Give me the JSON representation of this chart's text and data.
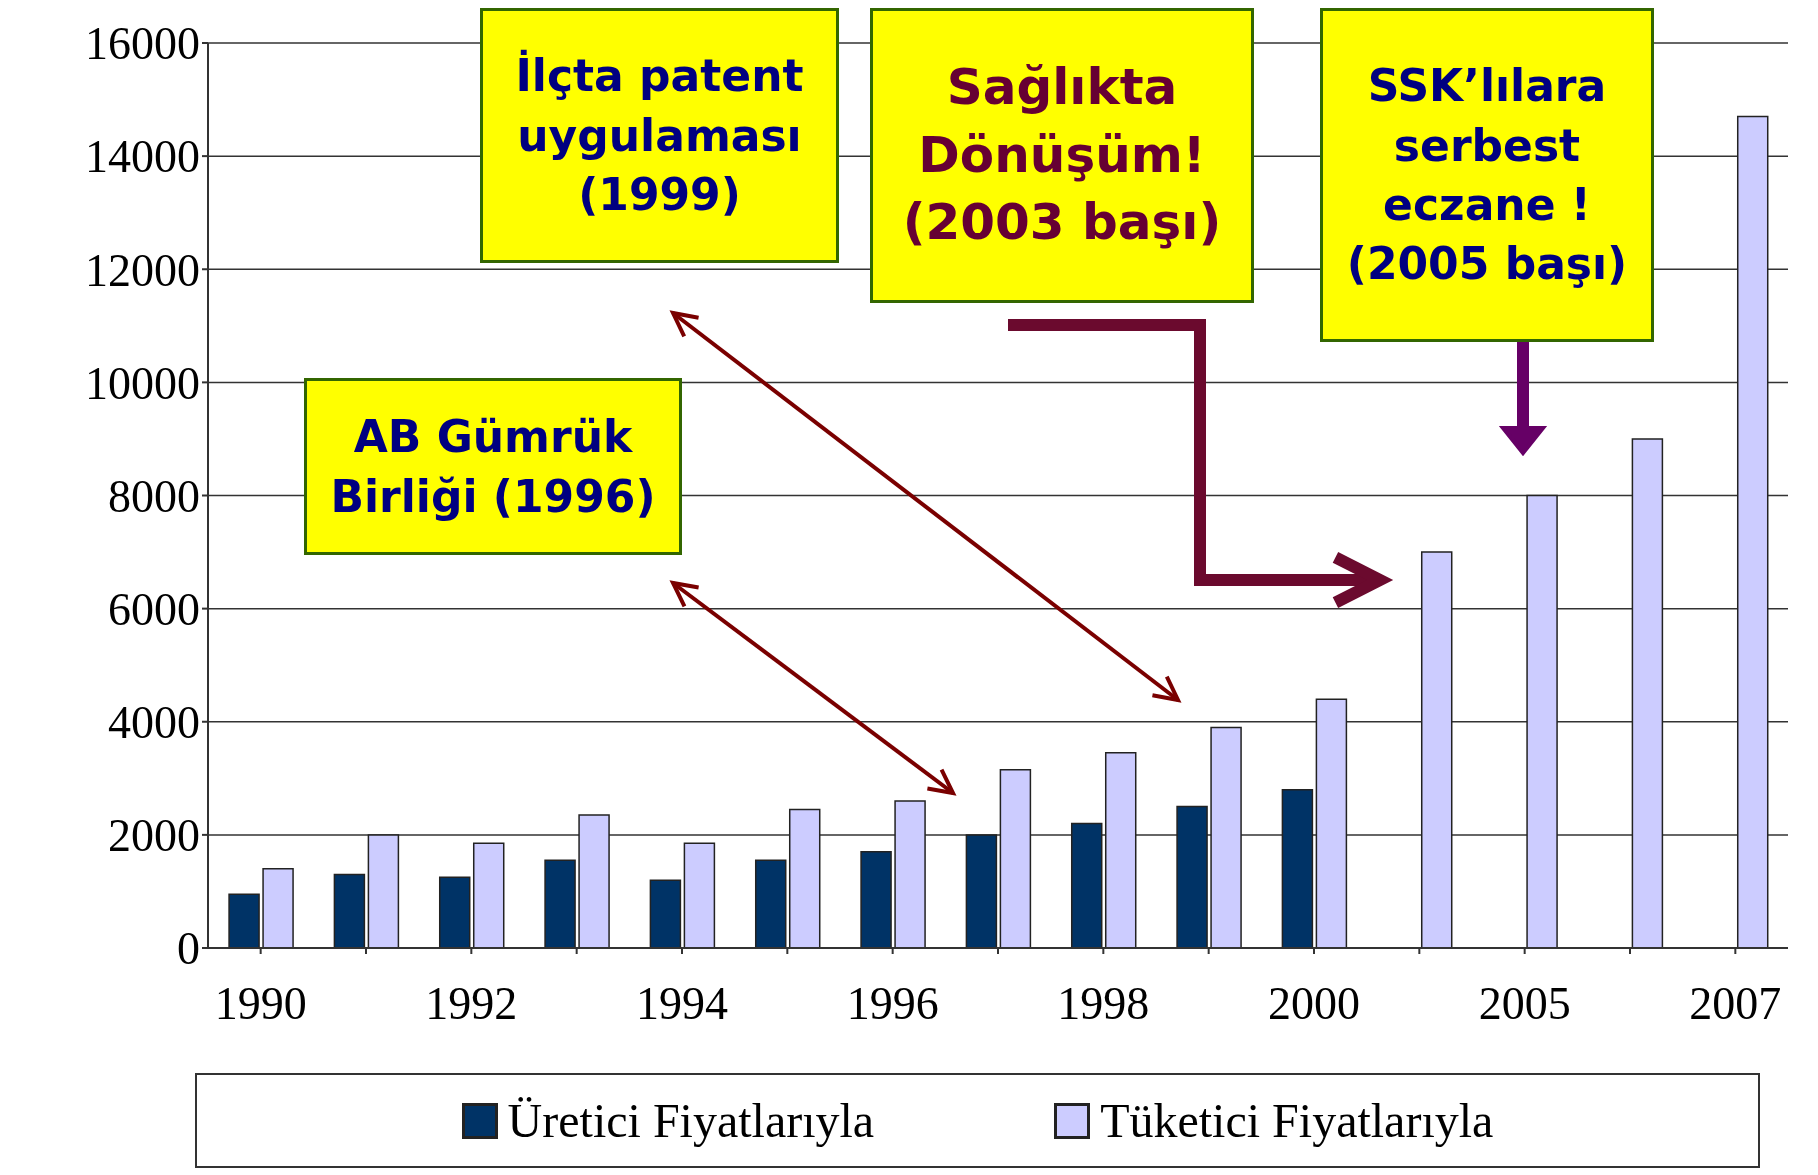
{
  "chart_data": {
    "type": "bar",
    "categories": [
      "1990",
      null,
      "1992",
      null,
      "1994",
      null,
      "1996",
      null,
      "1998",
      null,
      "2000",
      null,
      "2005",
      null,
      "2007"
    ],
    "series": [
      {
        "name": "Üretici Fiyatlarıyla",
        "color": "#003366",
        "values": [
          950,
          1300,
          1250,
          1550,
          1200,
          1550,
          1700,
          2000,
          2200,
          2500,
          2800,
          null,
          null,
          null,
          null
        ]
      },
      {
        "name": "Tüketici Fiyatlarıyla",
        "color": "#ccccff",
        "values": [
          1400,
          2000,
          1850,
          2350,
          1850,
          2450,
          2600,
          3150,
          3450,
          3900,
          4400,
          7000,
          8000,
          9000,
          14700
        ]
      }
    ],
    "ylim": [
      0,
      16000
    ],
    "yticks": [
      0,
      2000,
      4000,
      6000,
      8000,
      10000,
      12000,
      14000,
      16000
    ],
    "grid": "y",
    "legend": "bottom",
    "annotations": [
      "AB Gümrük Birliği (1996)",
      "İlçta patent uygulaması (1999)",
      "Sağlıkta Dönüşüm! (2003 başı)",
      "SSK’lılara serbest eczane ! (2005 başı)"
    ]
  }
}
